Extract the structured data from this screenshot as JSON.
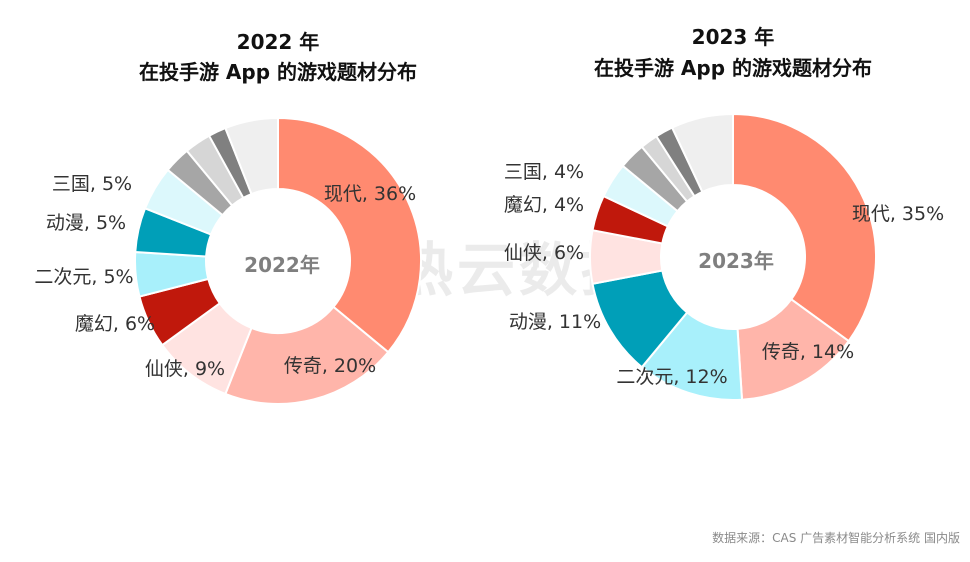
{
  "watermark": "热云数据",
  "source": "数据来源：CAS 广告素材智能分析系统 国内版",
  "chart_data": [
    {
      "type": "pie",
      "title": "2022 年",
      "subtitle": "在投手游 App 的游戏题材分布",
      "center_label": "2022年",
      "slices": [
        {
          "name": "现代",
          "value": 36,
          "label": "现代, 36%",
          "color": "#ff8a70"
        },
        {
          "name": "传奇",
          "value": 20,
          "label": "传奇, 20%",
          "color": "#ffb5aa"
        },
        {
          "name": "仙侠",
          "value": 9,
          "label": "仙侠, 9%",
          "color": "#ffe3e1"
        },
        {
          "name": "魔幻",
          "value": 6,
          "label": "魔幻, 6%",
          "color": "#c0180c"
        },
        {
          "name": "二次元",
          "value": 5,
          "label": "二次元, 5%",
          "color": "#a8f0fb"
        },
        {
          "name": "动漫",
          "value": 5,
          "label": "动漫, 5%",
          "color": "#009fb8"
        },
        {
          "name": "三国",
          "value": 5,
          "label": "三国, 5%",
          "color": "#dcf8fc"
        },
        {
          "name": "",
          "value": 3,
          "label": "",
          "color": "#a6a6a6"
        },
        {
          "name": "",
          "value": 3,
          "label": "",
          "color": "#d6d6d6"
        },
        {
          "name": "",
          "value": 2,
          "label": "",
          "color": "#808080"
        },
        {
          "name": "",
          "value": 6,
          "label": "",
          "color": "#efefef"
        }
      ]
    },
    {
      "type": "pie",
      "title": "2023 年",
      "subtitle": "在投手游 App 的游戏题材分布",
      "center_label": "2023年",
      "slices": [
        {
          "name": "现代",
          "value": 35,
          "label": "现代, 35%",
          "color": "#ff8a70"
        },
        {
          "name": "传奇",
          "value": 14,
          "label": "传奇, 14%",
          "color": "#ffb5aa"
        },
        {
          "name": "二次元",
          "value": 12,
          "label": "二次元, 12%",
          "color": "#a8f0fb"
        },
        {
          "name": "动漫",
          "value": 11,
          "label": "动漫, 11%",
          "color": "#009fb8"
        },
        {
          "name": "仙侠",
          "value": 6,
          "label": "仙侠, 6%",
          "color": "#ffe3e1"
        },
        {
          "name": "魔幻",
          "value": 4,
          "label": "魔幻, 4%",
          "color": "#c0180c"
        },
        {
          "name": "三国",
          "value": 4,
          "label": "三国, 4%",
          "color": "#dcf8fc"
        },
        {
          "name": "",
          "value": 3,
          "label": "",
          "color": "#a6a6a6"
        },
        {
          "name": "",
          "value": 2,
          "label": "",
          "color": "#d6d6d6"
        },
        {
          "name": "",
          "value": 2,
          "label": "",
          "color": "#808080"
        },
        {
          "name": "",
          "value": 7,
          "label": "",
          "color": "#efefef"
        }
      ]
    }
  ]
}
